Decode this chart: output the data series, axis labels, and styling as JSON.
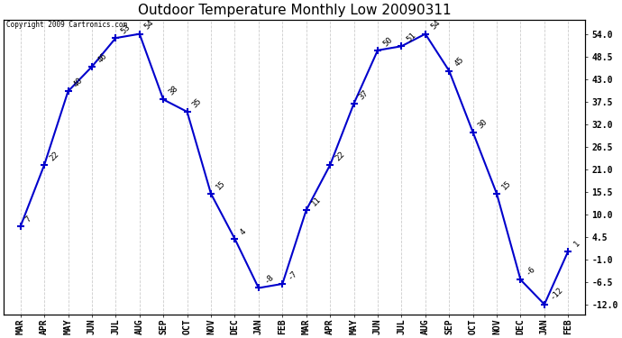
{
  "title": "Outdoor Temperature Monthly Low 20090311",
  "copyright": "Copyright 2009 Cartronics.com",
  "months": [
    "MAR",
    "APR",
    "MAY",
    "JUN",
    "JUL",
    "AUG",
    "SEP",
    "OCT",
    "NOV",
    "DEC",
    "JAN",
    "FEB",
    "MAR",
    "APR",
    "MAY",
    "JUN",
    "JUL",
    "AUG",
    "SEP",
    "OCT",
    "NOV",
    "DEC",
    "JAN",
    "FEB"
  ],
  "values": [
    7,
    22,
    40,
    46,
    53,
    54,
    38,
    35,
    15,
    4,
    -8,
    -7,
    11,
    22,
    37,
    50,
    51,
    54,
    45,
    30,
    15,
    -6,
    -12,
    1
  ],
  "line_color": "#0000cc",
  "marker": "+",
  "marker_size": 6,
  "line_width": 1.5,
  "ylim": [
    -14.5,
    57.5
  ],
  "yticks": [
    54.0,
    48.5,
    43.0,
    37.5,
    32.0,
    26.5,
    21.0,
    15.5,
    10.0,
    4.5,
    -1.0,
    -6.5,
    -12.0
  ],
  "grid_color": "#cccccc",
  "bg_color": "#ffffff",
  "title_fontsize": 11,
  "label_fontsize": 7,
  "annotation_fontsize": 6.5,
  "annotation_color": "#000000"
}
